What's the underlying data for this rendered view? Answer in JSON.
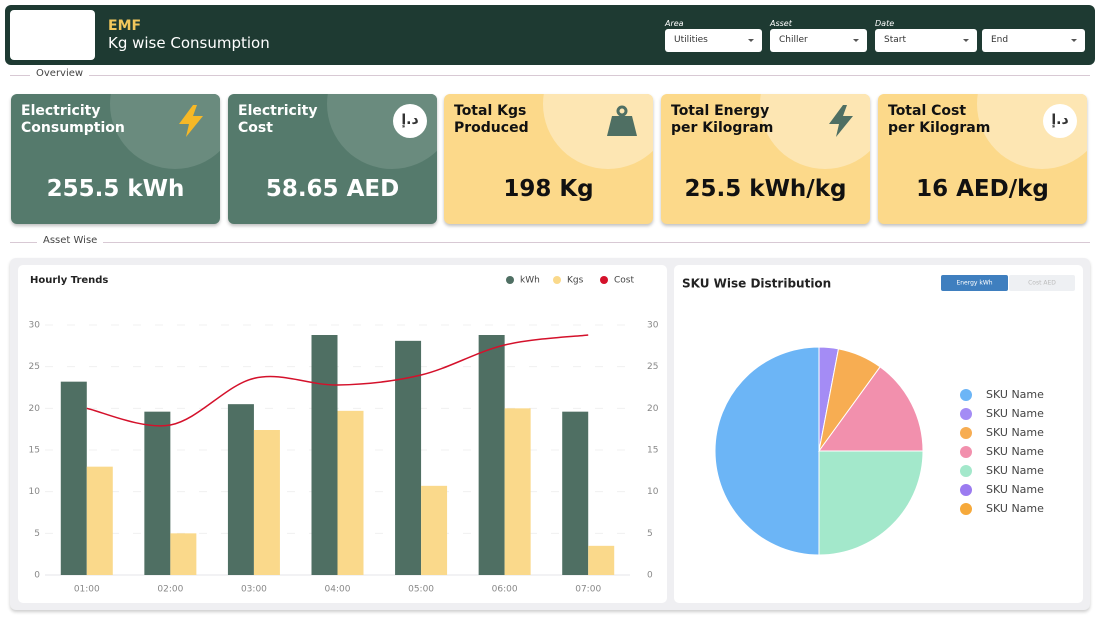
{
  "header": {
    "title": "EMF",
    "subtitle": "Kg wise Consumption"
  },
  "filters": [
    {
      "label": "Area",
      "value": "Utilities"
    },
    {
      "label": "Asset",
      "value": "Chiller"
    },
    {
      "label": "Date",
      "value": "Start"
    },
    {
      "value": "End"
    }
  ],
  "sections": [
    "Overview",
    "Asset Wise"
  ],
  "cards": [
    {
      "title_lines": [
        "Electricity",
        "Consumption"
      ],
      "value": "255.5 kWh"
    },
    {
      "title_lines": [
        "Electricity",
        "Cost"
      ],
      "value": "58.65 AED",
      "icon_text": "د.إ"
    },
    {
      "title_lines": [
        "Total Kgs",
        "Produced"
      ],
      "value": "198 Kg"
    },
    {
      "title_lines": [
        "Total Energy",
        "per Kilogram"
      ],
      "value": "25.5 kWh/kg"
    },
    {
      "title_lines": [
        "Total Cost",
        "per Kilogram"
      ],
      "value": "16 AED/kg",
      "icon_text": "د.إ"
    }
  ],
  "chart_data": [
    {
      "type": "bar",
      "title": "Hourly Trends",
      "categories": [
        "01:00",
        "02:00",
        "03:00",
        "04:00",
        "05:00",
        "06:00",
        "07:00"
      ],
      "series": [
        {
          "name": "kWh",
          "color": "#4f6f63",
          "values": [
            23.2,
            19.6,
            20.5,
            28.8,
            28.1,
            28.8,
            19.6
          ]
        },
        {
          "name": "Kgs",
          "color": "#fad98b",
          "values": [
            13,
            5,
            17.4,
            19.7,
            10.7,
            20,
            3.5
          ]
        },
        {
          "name": "Cost",
          "type": "line",
          "axis": "y2",
          "color": "#d4112b",
          "values": [
            20,
            18,
            23.6,
            22.8,
            24,
            27.6,
            28.8
          ]
        }
      ],
      "ylim": [
        0,
        30
      ],
      "yticks": [
        0,
        5,
        10,
        15,
        20,
        25,
        30
      ],
      "y2lim": [
        0,
        30
      ],
      "y2ticks": [
        0,
        5,
        10,
        15,
        20,
        25,
        30
      ],
      "grid": true,
      "legend": "top-right"
    },
    {
      "type": "pie",
      "title": "SKU Wise Distribution",
      "tabs": [
        "Energy kWh",
        "Cost AED"
      ],
      "categories": [
        "SKU Name",
        "SKU Name",
        "SKU Name",
        "SKU Name",
        "SKU Name",
        "SKU Name",
        "SKU Name"
      ],
      "values": [
        50,
        3,
        7,
        15,
        25,
        0,
        0
      ],
      "colors": [
        "#6cb5f6",
        "#a48cf5",
        "#f7ad52",
        "#f290ad",
        "#a3e8cb",
        "#9b7bf0",
        "#f6a93b"
      ],
      "legend": "right"
    }
  ]
}
